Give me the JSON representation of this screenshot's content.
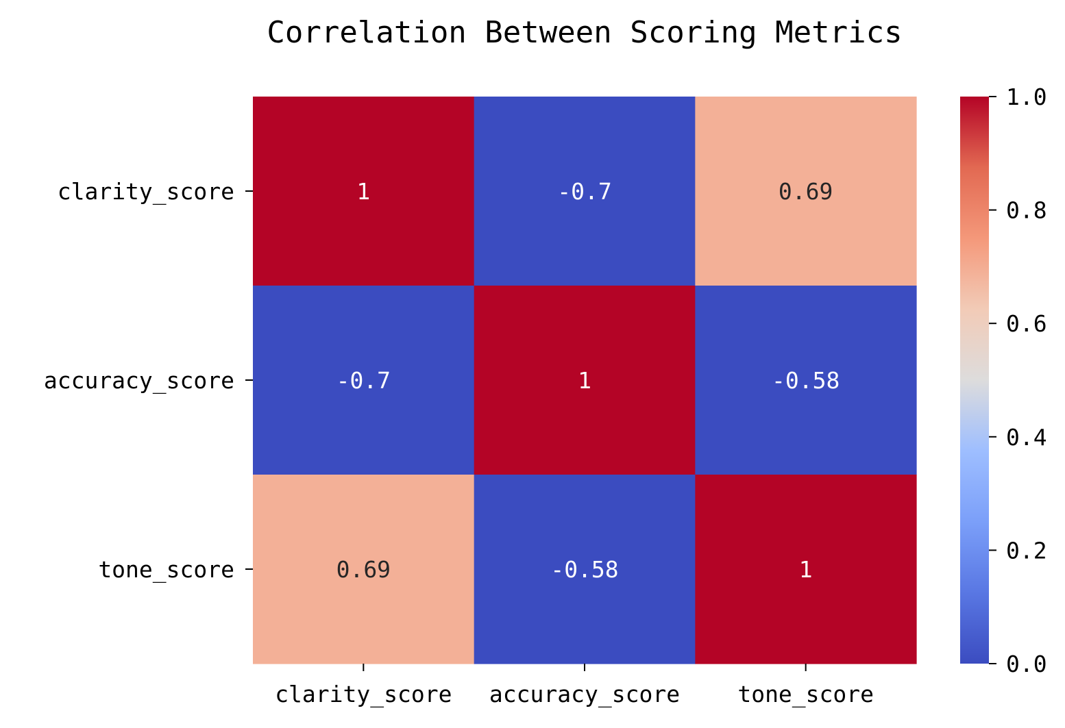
{
  "chart_data": {
    "type": "heatmap",
    "title": "Correlation Between Scoring Metrics",
    "x_labels": [
      "clarity_score",
      "accuracy_score",
      "tone_score"
    ],
    "y_labels": [
      "clarity_score",
      "accuracy_score",
      "tone_score"
    ],
    "values": [
      [
        1,
        -0.7,
        0.69
      ],
      [
        -0.7,
        1,
        -0.58
      ],
      [
        0.69,
        -0.58,
        1
      ]
    ],
    "annotations": [
      [
        "1",
        "-0.7",
        "0.69"
      ],
      [
        "-0.7",
        "1",
        "-0.58"
      ],
      [
        "0.69",
        "-0.58",
        "1"
      ]
    ],
    "colormap": "coolwarm",
    "colorbar": {
      "range": [
        0.0,
        1.0
      ],
      "ticks": [
        "0.0",
        "0.2",
        "0.4",
        "0.6",
        "0.8",
        "1.0"
      ]
    },
    "colors": {
      "high": "#b40426",
      "low": "#3b4cc0",
      "mid": "#dddddd",
      "positive_0_69": "#f5b194",
      "annotation_light": "#ffffff",
      "annotation_dark": "#262626"
    }
  }
}
